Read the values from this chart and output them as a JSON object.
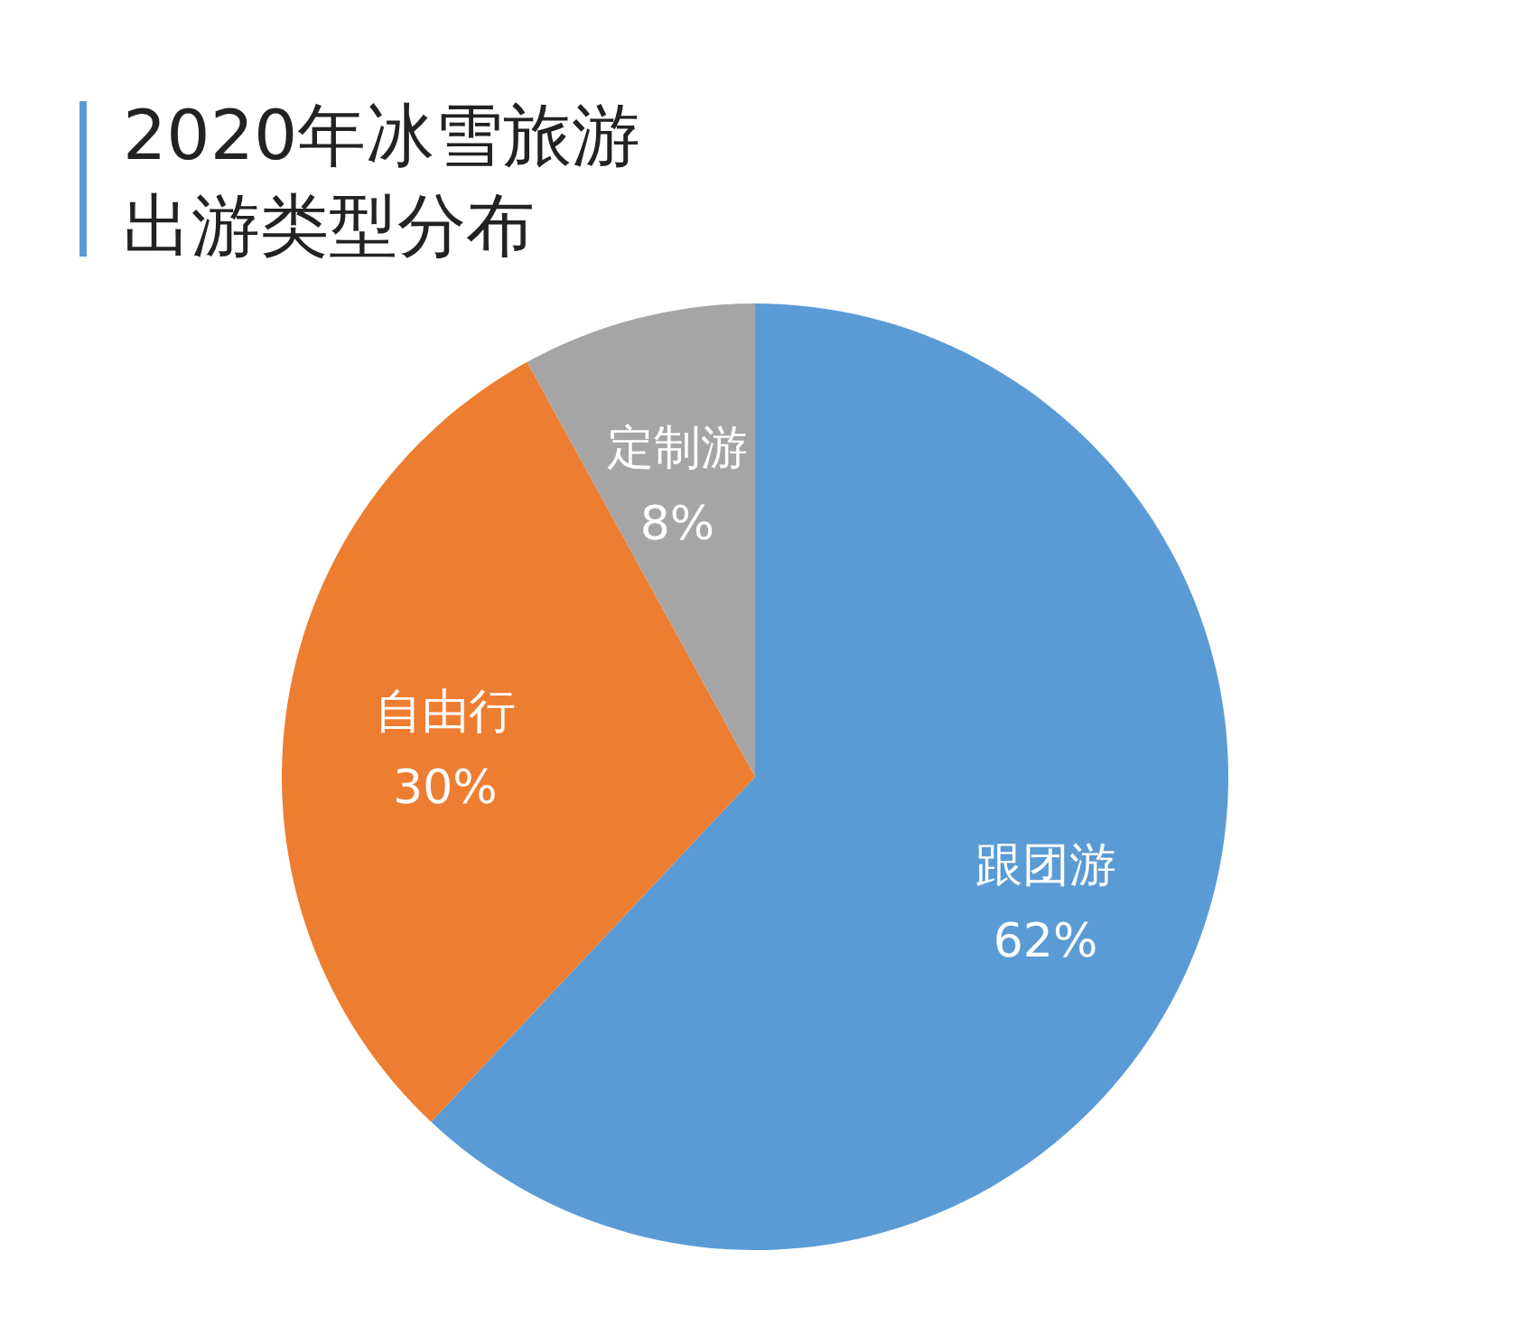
{
  "chart_data": {
    "type": "pie",
    "title": "2020年冰雪旅游出游类型分布",
    "categories": [
      "跟团游",
      "自由行",
      "定制游"
    ],
    "values": [
      62,
      30,
      8
    ],
    "colors": [
      "#5b9bd5",
      "#ed7d31",
      "#a5a5a5"
    ],
    "value_labels": [
      "62%",
      "30%",
      "8%"
    ]
  }
}
